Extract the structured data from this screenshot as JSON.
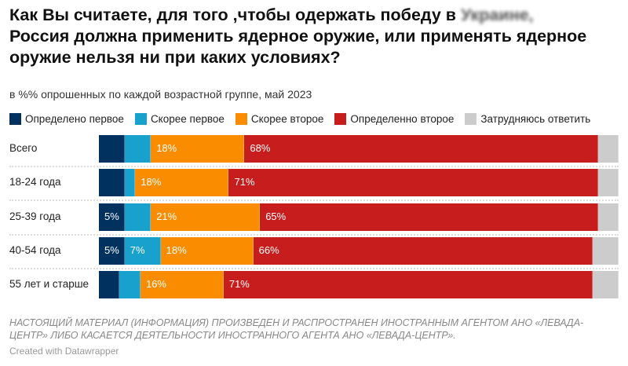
{
  "title_before": "Как Вы считаете, для того ,чтобы одержать победу в",
  "title_blurred": "Украине,",
  "title_after": "Россия должна применить ядерное оружие, или применять ядерное оружие нельзя ни при каких условиях?",
  "subtitle": "в %% опрошенных по каждой возрастной группе, май 2023",
  "note": "НАСТОЯЩИЙ МАТЕРИАЛ (ИНФОРМАЦИЯ) ПРОИЗВЕДЕН И РАСПРОСТРАНЕН ИНОСТРАННЫМ АГЕНТОМ АНО «ЛЕВАДА-ЦЕНТР» ЛИБО КАСАЕТСЯ ДЕЯТЕЛЬНОСТИ ИНОСТРАННОГО АГЕНТА АНО «ЛЕВАДА-ЦЕНТР».",
  "credit": "Created with Datawrapper",
  "chart_data": {
    "type": "bar",
    "stacked": true,
    "orientation": "horizontal",
    "unit": "%",
    "categories": [
      "Всего",
      "18-24 года",
      "25-39 года",
      "40-54 года",
      "55 лет и старше"
    ],
    "legend_position": "top",
    "series": [
      {
        "name": "Определено первое",
        "color": "#00315f",
        "values": [
          5,
          5,
          5,
          5,
          4
        ],
        "labels": [
          "",
          "",
          "5%",
          "5%",
          ""
        ]
      },
      {
        "name": "Скорее первое",
        "color": "#18a1cd",
        "values": [
          5,
          2,
          5,
          7,
          4
        ],
        "labels": [
          "",
          "",
          "",
          "7%",
          ""
        ]
      },
      {
        "name": "Скорее второе",
        "color": "#fa8c00",
        "values": [
          18,
          18,
          21,
          18,
          16
        ],
        "labels": [
          "18%",
          "18%",
          "21%",
          "18%",
          "16%"
        ]
      },
      {
        "name": "Определенно второе",
        "color": "#c71e1d",
        "values": [
          68,
          71,
          65,
          66,
          71
        ],
        "labels": [
          "68%",
          "71%",
          "65%",
          "66%",
          "71%"
        ]
      },
      {
        "name": "Затрудняюсь ответить",
        "color": "#cccccc",
        "values": [
          4,
          4,
          4,
          5,
          5
        ],
        "labels": [
          "",
          "",
          "",
          "",
          ""
        ]
      }
    ]
  }
}
